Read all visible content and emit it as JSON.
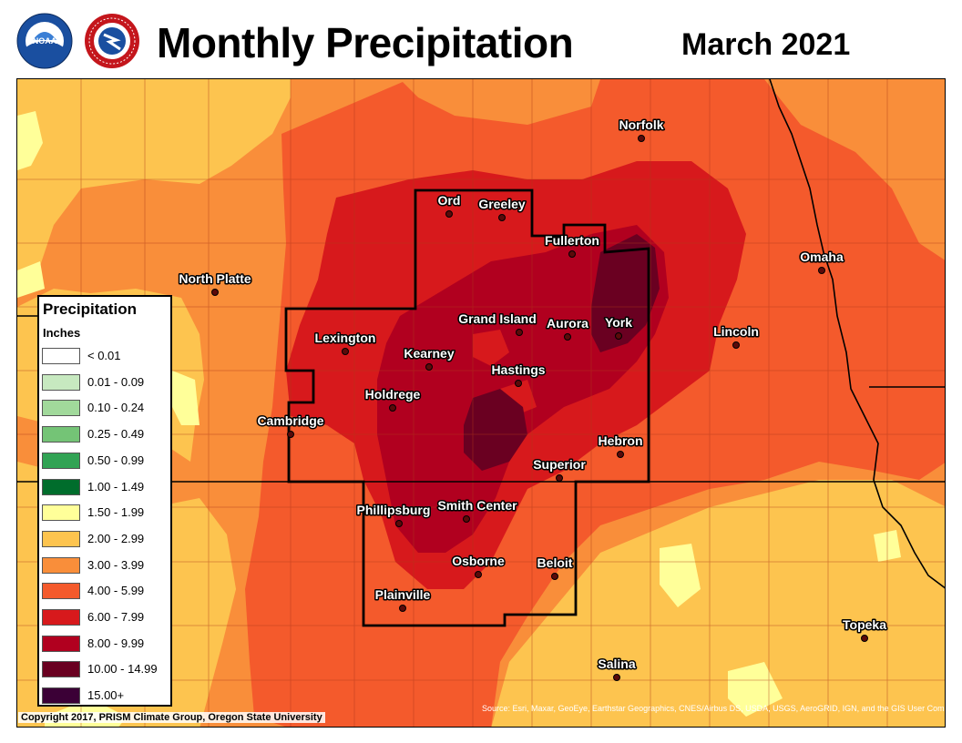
{
  "header": {
    "title": "Monthly Precipitation",
    "period": "March 2021",
    "logos": [
      {
        "name": "noaa-logo",
        "text": "NOAA"
      },
      {
        "name": "nws-logo",
        "text": "NATIONAL WEATHER SERVICE"
      }
    ]
  },
  "legend": {
    "title": "Precipitation",
    "units": "Inches",
    "items": [
      {
        "label": "< 0.01",
        "color": "#ffffff"
      },
      {
        "label": "0.01 - 0.09",
        "color": "#c7e9c0"
      },
      {
        "label": "0.10 - 0.24",
        "color": "#a1d99b"
      },
      {
        "label": "0.25 - 0.49",
        "color": "#74c476"
      },
      {
        "label": "0.50 - 0.99",
        "color": "#31a354"
      },
      {
        "label": "1.00 - 1.49",
        "color": "#006d2c"
      },
      {
        "label": "1.50 - 1.99",
        "color": "#ffff99"
      },
      {
        "label": "2.00 - 2.99",
        "color": "#fdc44f"
      },
      {
        "label": "3.00 - 3.99",
        "color": "#f98e3a"
      },
      {
        "label": "4.00 - 5.99",
        "color": "#f45a2c"
      },
      {
        "label": "6.00 - 7.99",
        "color": "#d7191c"
      },
      {
        "label": "8.00 - 9.99",
        "color": "#b1001f"
      },
      {
        "label": "10.00 - 14.99",
        "color": "#6a0021"
      },
      {
        "label": "15.00+",
        "color": "#3b0036"
      }
    ]
  },
  "cities": [
    {
      "name": "Norfolk"
    },
    {
      "name": "Ord"
    },
    {
      "name": "Greeley"
    },
    {
      "name": "Fullerton"
    },
    {
      "name": "Omaha"
    },
    {
      "name": "North Platte"
    },
    {
      "name": "Grand Island"
    },
    {
      "name": "Aurora"
    },
    {
      "name": "York"
    },
    {
      "name": "Lincoln"
    },
    {
      "name": "Lexington"
    },
    {
      "name": "Kearney"
    },
    {
      "name": "Hastings"
    },
    {
      "name": "Holdrege"
    },
    {
      "name": "Cambridge"
    },
    {
      "name": "Hebron"
    },
    {
      "name": "Superior"
    },
    {
      "name": "Phillipsburg"
    },
    {
      "name": "Smith Center"
    },
    {
      "name": "Osborne"
    },
    {
      "name": "Beloit"
    },
    {
      "name": "Plainville"
    },
    {
      "name": "Topeka"
    },
    {
      "name": "Salina"
    }
  ],
  "footer": {
    "copyright": "Copyright 2017, PRISM Climate Group, Oregon State University",
    "source": "Source: Esri, Maxar, GeoEye, Earthstar Geographics, CNES/Airbus DS, USDA, USGS, AeroGRID, IGN, and the GIS User Community"
  }
}
